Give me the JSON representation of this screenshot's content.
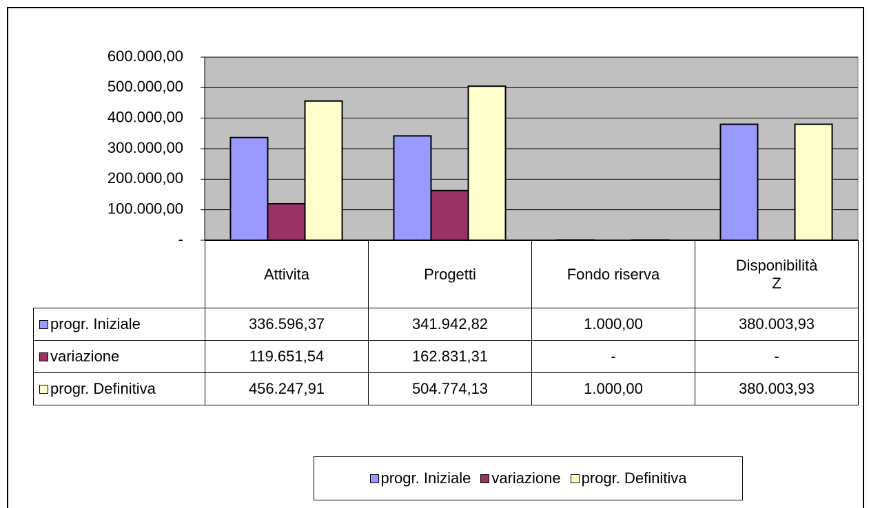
{
  "chart_data": {
    "type": "bar",
    "categories": [
      "Attivita",
      "Progetti",
      "Fondo riserva",
      "Disponibilità Z"
    ],
    "series": [
      {
        "name": "progr. Iniziale",
        "color": "#9999ff",
        "values": [
          336596.37,
          341942.82,
          1000,
          380003.93
        ],
        "value_labels": [
          "336.596,37",
          "341.942,82",
          "1.000,00",
          "380.003,93"
        ]
      },
      {
        "name": "variazione",
        "color": "#993366",
        "values": [
          119651.54,
          162831.31,
          0,
          0
        ],
        "value_labels": [
          "119.651,54",
          "162.831,31",
          "-",
          "-"
        ]
      },
      {
        "name": "progr. Definitiva",
        "color": "#ffffcc",
        "values": [
          456247.91,
          504774.13,
          1000,
          380003.93
        ],
        "value_labels": [
          "456.247,91",
          "504.774,13",
          "1.000,00",
          "380.003,93"
        ]
      }
    ],
    "ylim": [
      0,
      600000
    ],
    "yticks": [
      {
        "value": 0,
        "label": "-"
      },
      {
        "value": 100000,
        "label": "100.000,00"
      },
      {
        "value": 200000,
        "label": "200.000,00"
      },
      {
        "value": 300000,
        "label": "300.000,00"
      },
      {
        "value": 400000,
        "label": "400.000,00"
      },
      {
        "value": 500000,
        "label": "500.000,00"
      },
      {
        "value": 600000,
        "label": "600.000,00"
      }
    ],
    "grid": true,
    "plot_background": "#c0c0c0",
    "legend": "bottom"
  }
}
